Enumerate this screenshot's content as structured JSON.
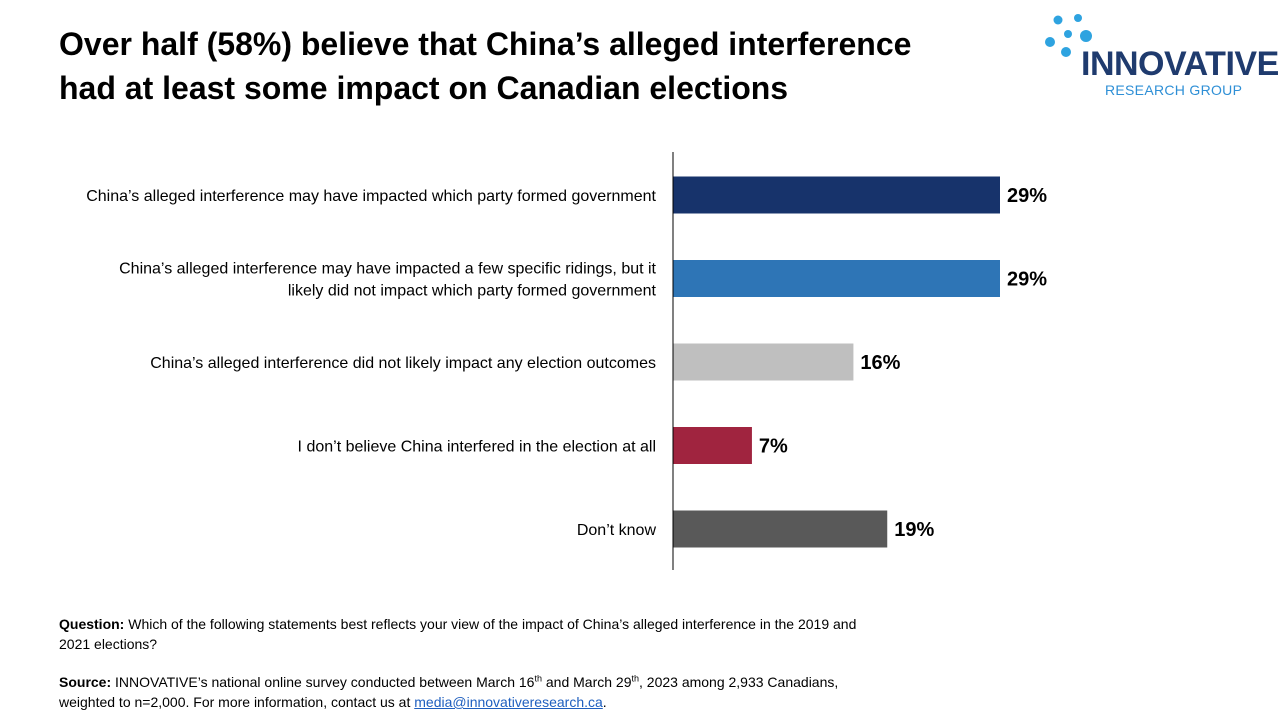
{
  "title_lines": [
    "Over half (58%) believe that China’s alleged interference",
    "had at least some impact on Canadian elections"
  ],
  "logo": {
    "brand": "INNOVATIVE",
    "sub": "RESEARCH GROUP"
  },
  "chart_data": {
    "type": "bar",
    "orientation": "horizontal",
    "categories": [
      [
        "China’s alleged interference may have impacted which party formed government"
      ],
      [
        "China’s alleged interference may have impacted a few specific ridings, but it",
        "likely did not impact which party formed government"
      ],
      [
        "China’s alleged interference did not likely impact any election outcomes"
      ],
      [
        "I don’t believe China interfered in the election at all"
      ],
      [
        "Don’t know"
      ]
    ],
    "values": [
      29,
      29,
      16,
      7,
      19
    ],
    "value_labels": [
      "29%",
      "29%",
      "16%",
      "7%",
      "19%"
    ],
    "colors": [
      "#17336b",
      "#2e75b6",
      "#bfbfbf",
      "#a0243f",
      "#595959"
    ],
    "xlim": [
      0,
      100
    ],
    "grid": false,
    "legend": "none"
  },
  "footer": {
    "question_label": "Question:",
    "question_text": " Which of the following statements best reflects your view of the impact of China’s alleged interference in the 2019 and 2021 elections?",
    "source_label": "Source:",
    "source_part1": " INNOVATIVE’s national online survey conducted between March 16",
    "source_sup1": "th",
    "source_part2": " and March 29",
    "source_sup2": "th",
    "source_part3": ", 2023 among 2,933 Canadians, weighted to n=2,000. For more information, contact us at ",
    "email": "media@innovativeresearch.ca",
    "source_end": "."
  }
}
